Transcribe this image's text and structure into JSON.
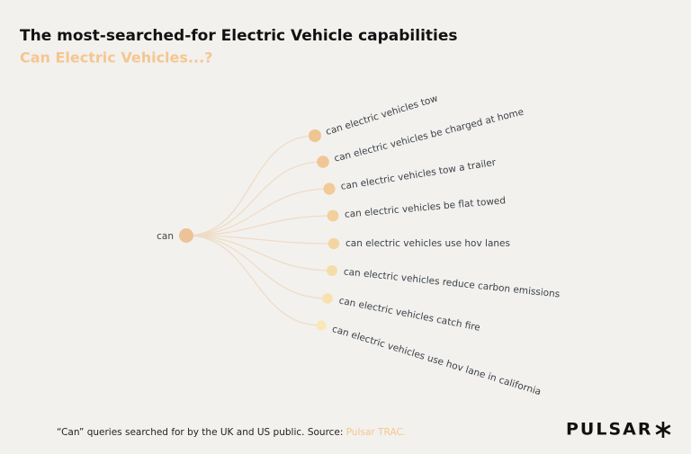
{
  "header": {
    "title": "The most-searched-for Electric Vehicle capabilities",
    "subtitle": "Can Electric Vehicles...?"
  },
  "tree": {
    "root": "can",
    "nodes": [
      {
        "label": "can electric vehicles tow"
      },
      {
        "label": "can electric vehicles be charged at home"
      },
      {
        "label": "can electric vehicles tow a trailer"
      },
      {
        "label": "can electric vehicles be flat towed"
      },
      {
        "label": "can electric vehicles use hov lanes"
      },
      {
        "label": "can electric vehicles reduce carbon emissions"
      },
      {
        "label": "can electric vehicles catch fire"
      },
      {
        "label": "can electric vehicles use hov lane in california"
      }
    ]
  },
  "footer": {
    "note": "“Can” queries searched for by the UK and US public. Source: ",
    "source": "Pulsar TRAC.",
    "logo": "PULSAR"
  }
}
